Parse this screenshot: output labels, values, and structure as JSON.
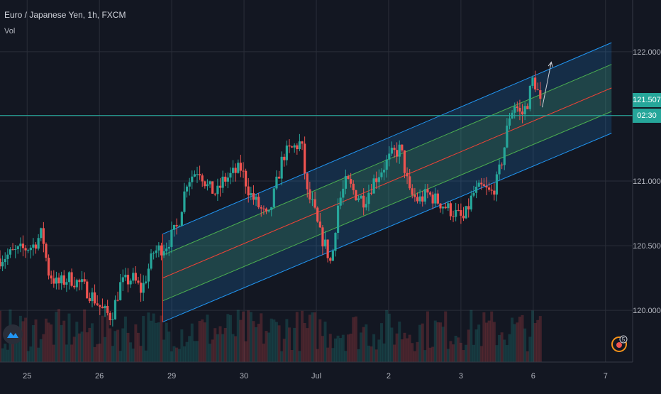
{
  "header": {
    "title": "Euro / Japanese Yen, 1h, FXCM",
    "indicator": "Vol"
  },
  "current": {
    "price": "121.507",
    "countdown": "02:30",
    "color": "#26a69a"
  },
  "badge": {
    "count": "5",
    "color": "#f7931a"
  },
  "icons": {
    "logo": "tradingview-icon",
    "badge": "notification-icon"
  },
  "colors": {
    "background": "#131722",
    "grid": "#2a2e39",
    "up": "#26a69a",
    "down": "#ef5350",
    "channel_outer": "#2196f3",
    "channel_inner": "#4caf50",
    "median": "#f44336",
    "current_line": "#26a69a"
  },
  "chart_data": {
    "type": "candlestick",
    "symbol": "EURJPY",
    "ylim": [
      119.6,
      122.4
    ],
    "yticks": [
      120.0,
      120.5,
      121.0,
      121.5,
      122.0
    ],
    "ytick_labels": [
      "120.000",
      "120.500",
      "121.000",
      "121.507",
      "122.000"
    ],
    "xticks": [
      {
        "label": "25",
        "t": 0
      },
      {
        "label": "26",
        "t": 24
      },
      {
        "label": "29",
        "t": 48
      },
      {
        "label": "30",
        "t": 72
      },
      {
        "label": "Jul",
        "t": 96
      },
      {
        "label": "2",
        "t": 120
      },
      {
        "label": "3",
        "t": 144
      },
      {
        "label": "6",
        "t": 168
      },
      {
        "label": "7",
        "t": 192
      }
    ],
    "xlim": [
      -9,
      201
    ],
    "close_anchors": [
      [
        -9,
        120.4
      ],
      [
        -4,
        120.45
      ],
      [
        2,
        120.5
      ],
      [
        5,
        120.6
      ],
      [
        7,
        120.3
      ],
      [
        10,
        120.2
      ],
      [
        14,
        120.25
      ],
      [
        18,
        120.2
      ],
      [
        22,
        120.1
      ],
      [
        25,
        120.0
      ],
      [
        28,
        119.95
      ],
      [
        31,
        120.2
      ],
      [
        35,
        120.25
      ],
      [
        38,
        120.15
      ],
      [
        42,
        120.45
      ],
      [
        46,
        120.5
      ],
      [
        50,
        120.65
      ],
      [
        53,
        121.0
      ],
      [
        57,
        121.1
      ],
      [
        60,
        120.95
      ],
      [
        63,
        120.9
      ],
      [
        65,
        121.0
      ],
      [
        68,
        121.05
      ],
      [
        71,
        121.1
      ],
      [
        74,
        120.9
      ],
      [
        77,
        120.8
      ],
      [
        80,
        120.7
      ],
      [
        82,
        120.9
      ],
      [
        85,
        121.2
      ],
      [
        88,
        121.25
      ],
      [
        91,
        121.3
      ],
      [
        93,
        120.9
      ],
      [
        95,
        120.8
      ],
      [
        97,
        120.6
      ],
      [
        99,
        120.5
      ],
      [
        101,
        120.35
      ],
      [
        103,
        120.8
      ],
      [
        106,
        121.0
      ],
      [
        109,
        120.9
      ],
      [
        112,
        120.85
      ],
      [
        115,
        121.0
      ],
      [
        118,
        121.1
      ],
      [
        121,
        121.2
      ],
      [
        124,
        121.25
      ],
      [
        127,
        120.9
      ],
      [
        130,
        120.85
      ],
      [
        133,
        120.9
      ],
      [
        136,
        120.85
      ],
      [
        139,
        120.8
      ],
      [
        142,
        120.75
      ],
      [
        145,
        120.7
      ],
      [
        148,
        120.9
      ],
      [
        151,
        120.95
      ],
      [
        154,
        120.9
      ],
      [
        156,
        121.0
      ],
      [
        158,
        121.2
      ],
      [
        160,
        121.5
      ],
      [
        162,
        121.6
      ],
      [
        164,
        121.5
      ],
      [
        166,
        121.6
      ],
      [
        168,
        121.8
      ],
      [
        170,
        121.65
      ],
      [
        171,
        121.5
      ]
    ],
    "volume_range": [
      0,
      1
    ],
    "drawings": {
      "regression_channel": {
        "start": {
          "t": 45,
          "median": 120.25,
          "width": 0.34
        },
        "end": {
          "t": 194,
          "median": 121.72,
          "width": 0.35
        },
        "outer_offset": 1.0,
        "inner_offset": 0.52
      },
      "projection_arrow": {
        "from": [
          171,
          121.57
        ],
        "to": [
          174,
          121.92
        ]
      }
    }
  }
}
